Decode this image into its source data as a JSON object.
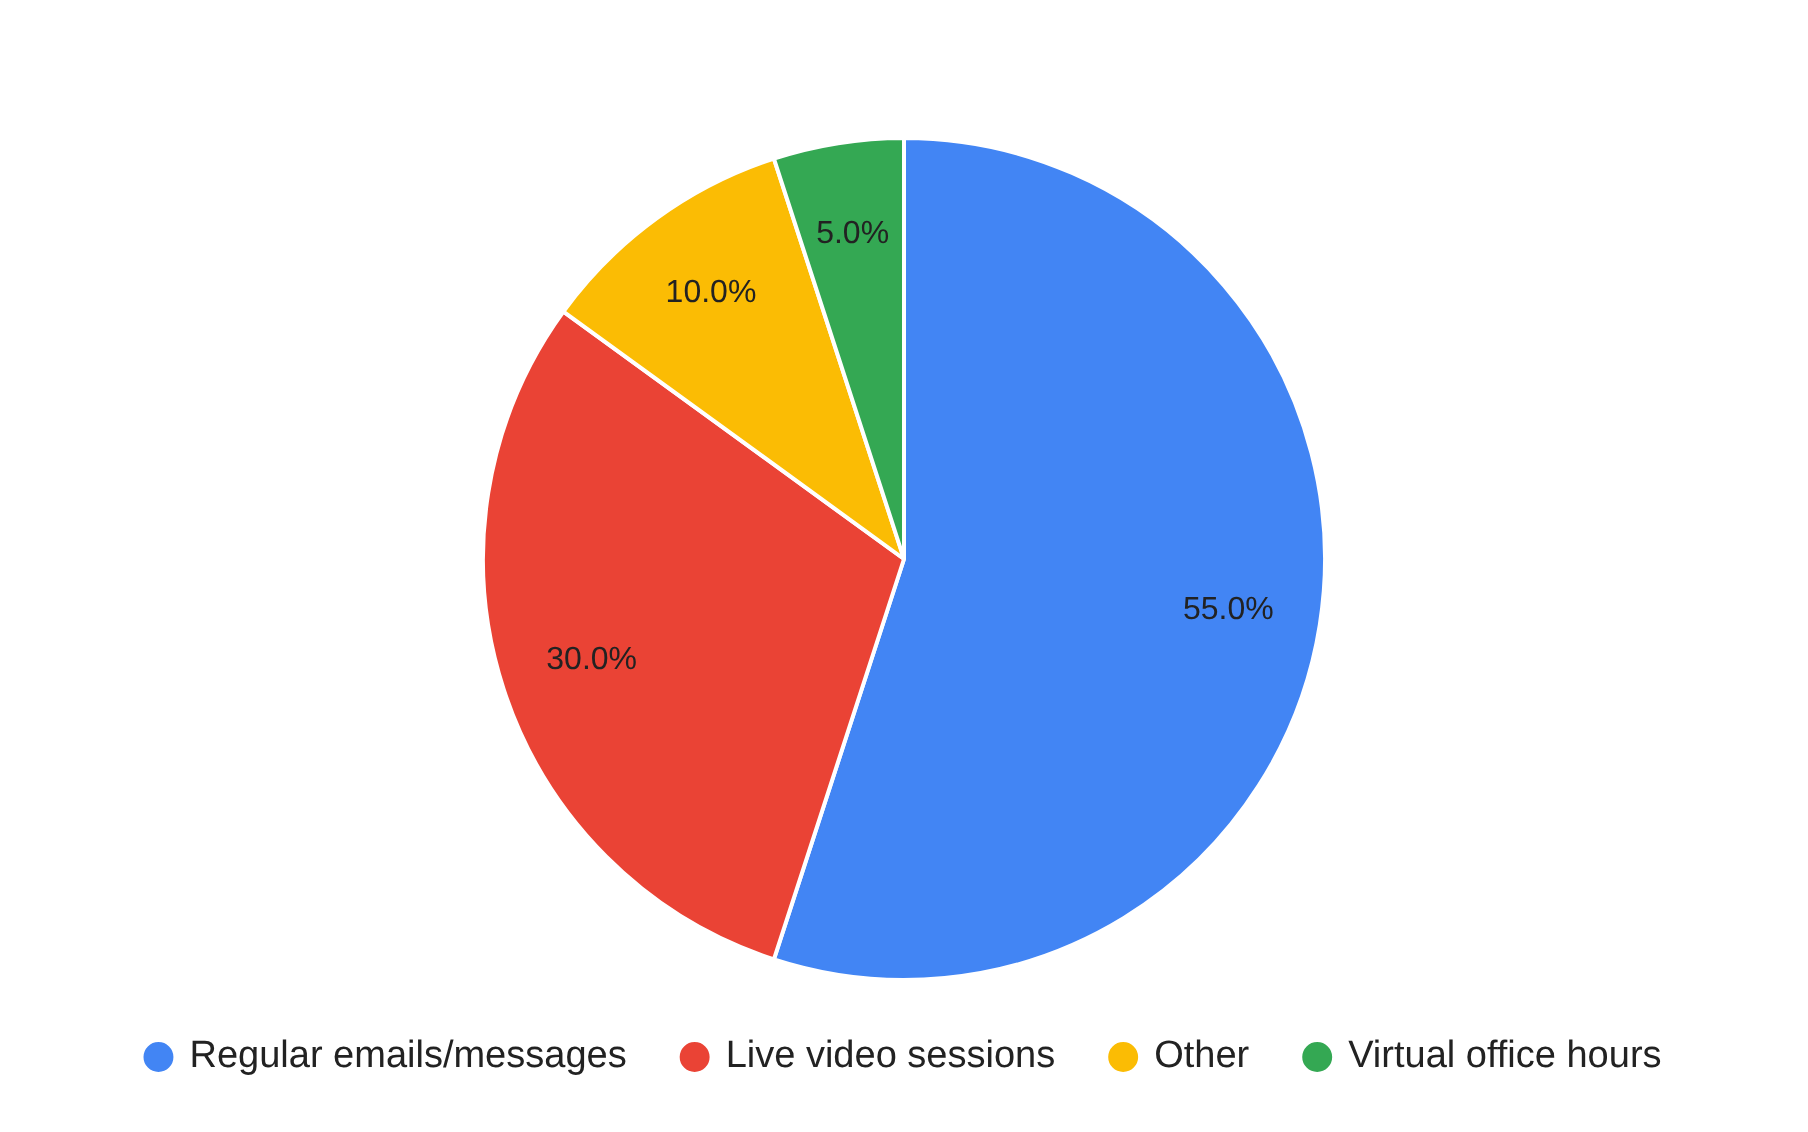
{
  "chart_data": {
    "type": "pie",
    "categories": [
      "Regular emails/messages",
      "Live video sessions",
      "Other",
      "Virtual office hours"
    ],
    "values": [
      55,
      30,
      10,
      5
    ],
    "colors": [
      "#4285f4",
      "#ea4335",
      "#fbbc04",
      "#34a853"
    ],
    "value_labels": [
      "55.0%",
      "30.0%",
      "10.0%",
      "5.0%"
    ],
    "legend": "bottom"
  }
}
